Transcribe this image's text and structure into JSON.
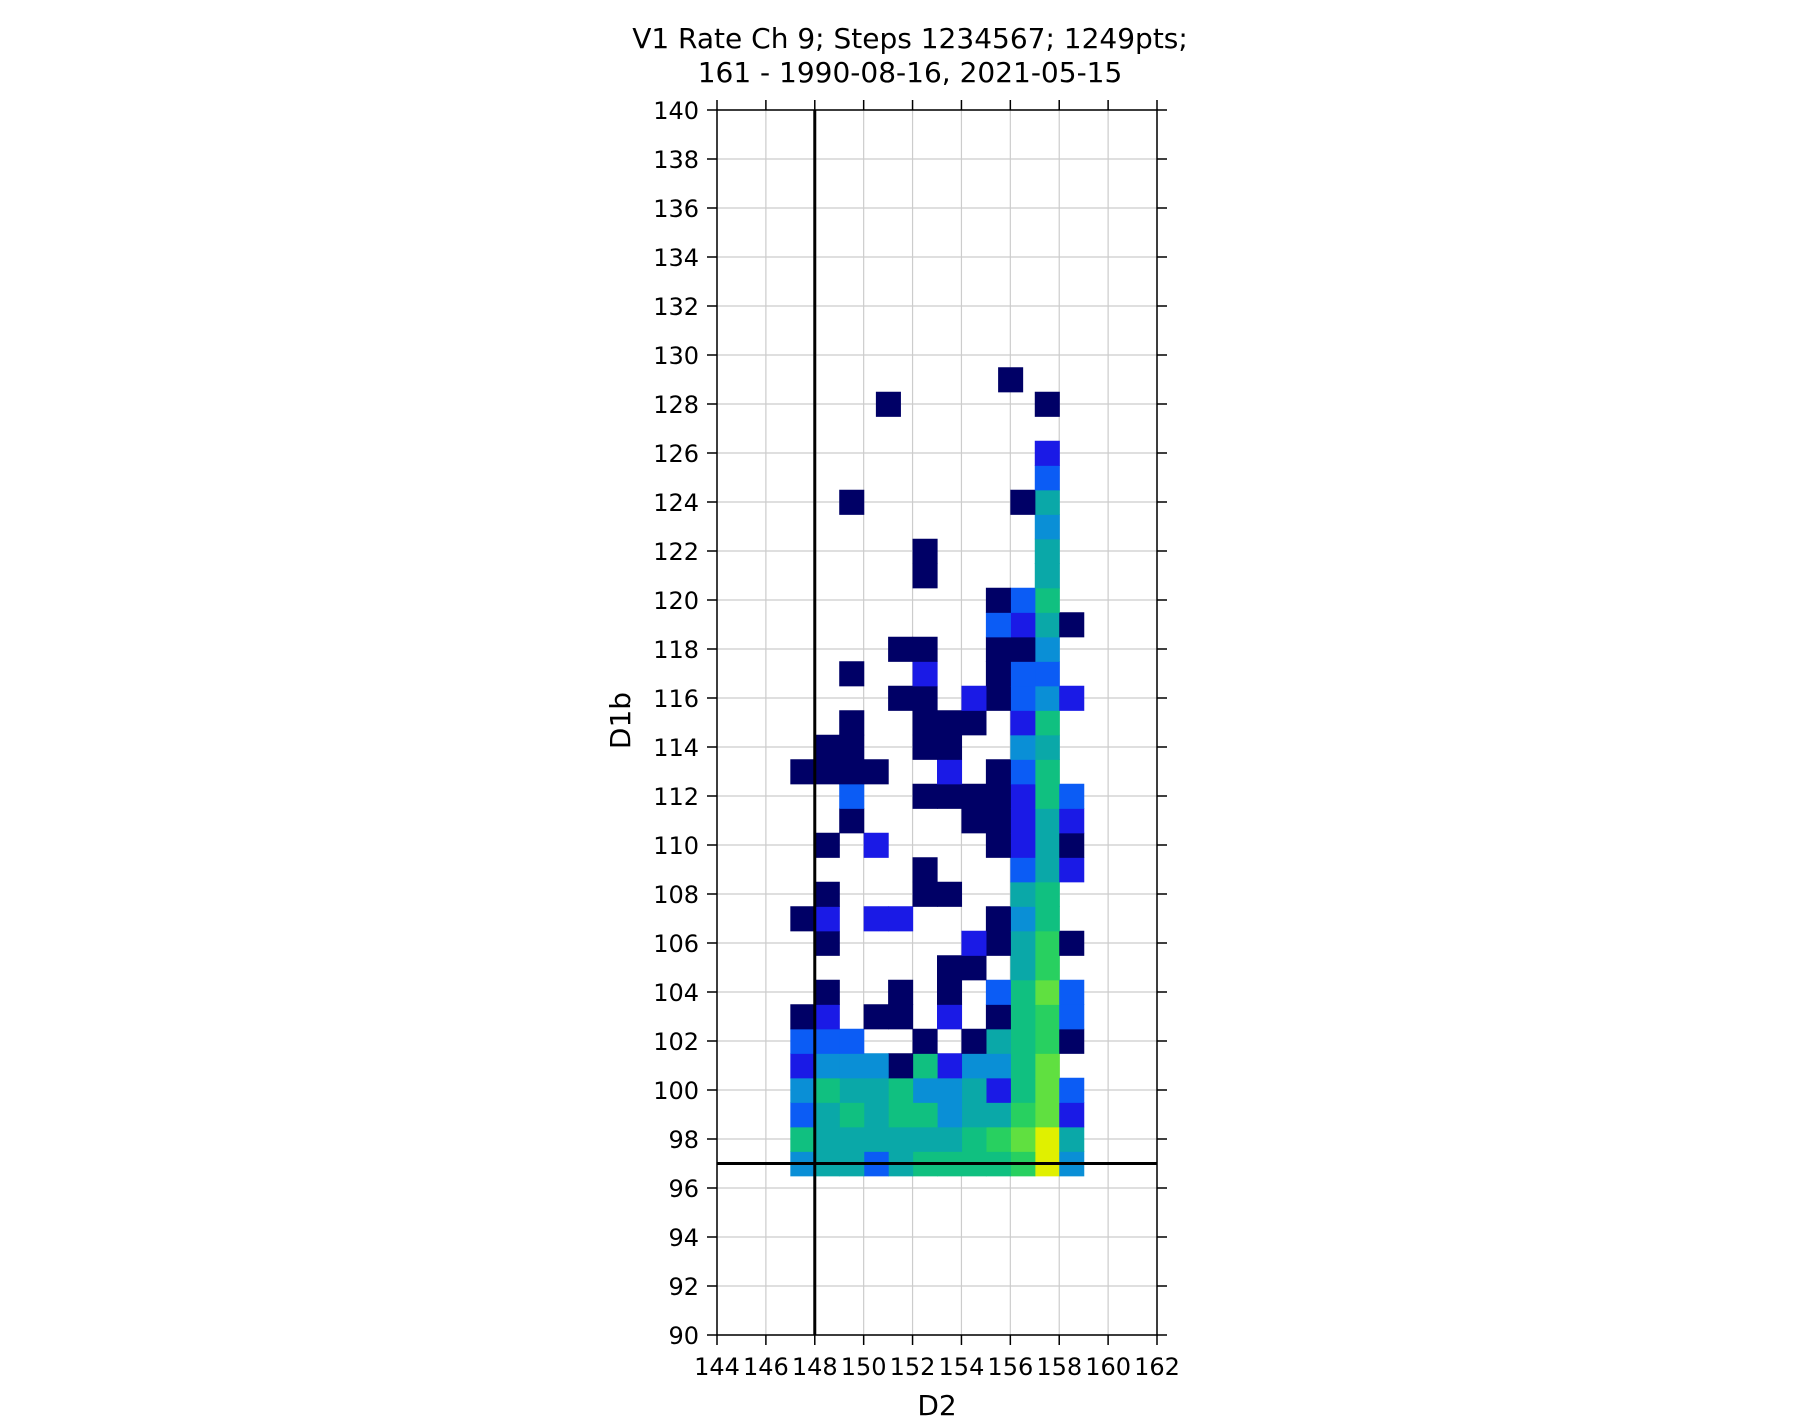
{
  "chart_data": {
    "type": "heatmap",
    "title_lines": [
      "V1 Rate Ch 9; Steps 1234567; 1249pts;",
      "161 - 1990-08-16, 2021-05-15"
    ],
    "xlabel": "D2",
    "ylabel": "D1b",
    "xlim": [
      144,
      162
    ],
    "ylim": [
      90,
      140
    ],
    "xticks": [
      "144",
      "146",
      "148",
      "150",
      "152",
      "154",
      "156",
      "158",
      "160",
      "162"
    ],
    "yticks": [
      "90",
      "92",
      "94",
      "96",
      "98",
      "100",
      "102",
      "104",
      "106",
      "108",
      "110",
      "112",
      "114",
      "116",
      "118",
      "120",
      "122",
      "124",
      "126",
      "128",
      "130",
      "132",
      "134",
      "136",
      "138",
      "140"
    ],
    "grid": true,
    "bin_size": 1,
    "reference_lines": {
      "vertical_x": 148,
      "horizontal_y": 97
    },
    "colormap": [
      "#000066",
      "#1a1ae6",
      "#0b5cf5",
      "#0a8fd6",
      "#0aa8a8",
      "#10c080",
      "#28d060",
      "#60e040",
      "#a0e020",
      "#e0f000"
    ],
    "cells": [
      [
        157.5,
        97.0,
        9
      ],
      [
        156.5,
        97.0,
        6
      ],
      [
        155.5,
        97.0,
        5
      ],
      [
        154.5,
        97.0,
        5
      ],
      [
        153.5,
        97.0,
        5
      ],
      [
        152.5,
        97.0,
        5
      ],
      [
        151.5,
        97.0,
        4
      ],
      [
        150.5,
        97.0,
        2
      ],
      [
        149.5,
        97.0,
        4
      ],
      [
        148.5,
        97.0,
        4
      ],
      [
        147.5,
        97.0,
        3
      ],
      [
        158.5,
        97.0,
        3
      ],
      [
        157.5,
        98.0,
        9
      ],
      [
        156.5,
        98.0,
        7
      ],
      [
        155.5,
        98.0,
        6
      ],
      [
        154.5,
        98.0,
        5
      ],
      [
        153.5,
        98.0,
        4
      ],
      [
        152.5,
        98.0,
        4
      ],
      [
        151.5,
        98.0,
        4
      ],
      [
        150.5,
        98.0,
        4
      ],
      [
        149.5,
        98.0,
        4
      ],
      [
        148.5,
        98.0,
        4
      ],
      [
        147.5,
        98.0,
        5
      ],
      [
        158.5,
        98.0,
        4
      ],
      [
        157.5,
        99.0,
        7
      ],
      [
        156.5,
        99.0,
        6
      ],
      [
        155.5,
        99.0,
        4
      ],
      [
        154.5,
        99.0,
        4
      ],
      [
        153.5,
        99.0,
        3
      ],
      [
        152.5,
        99.0,
        5
      ],
      [
        151.5,
        99.0,
        5
      ],
      [
        150.5,
        99.0,
        4
      ],
      [
        149.5,
        99.0,
        5
      ],
      [
        148.5,
        99.0,
        4
      ],
      [
        147.5,
        99.0,
        2
      ],
      [
        158.5,
        99.0,
        1
      ],
      [
        157.5,
        100.0,
        7
      ],
      [
        156.5,
        100.0,
        5
      ],
      [
        155.5,
        100.0,
        1
      ],
      [
        154.5,
        100.0,
        4
      ],
      [
        153.5,
        100.0,
        3
      ],
      [
        152.5,
        100.0,
        3
      ],
      [
        151.5,
        100.0,
        5
      ],
      [
        150.5,
        100.0,
        4
      ],
      [
        149.5,
        100.0,
        4
      ],
      [
        148.5,
        100.0,
        5
      ],
      [
        147.5,
        100.0,
        3
      ],
      [
        158.5,
        100.0,
        2
      ],
      [
        157.5,
        101.0,
        7
      ],
      [
        156.5,
        101.0,
        5
      ],
      [
        155.5,
        101.0,
        3
      ],
      [
        154.5,
        101.0,
        3
      ],
      [
        153.5,
        101.0,
        1
      ],
      [
        152.5,
        101.0,
        5
      ],
      [
        151.5,
        101.0,
        0
      ],
      [
        150.5,
        101.0,
        3
      ],
      [
        149.5,
        101.0,
        3
      ],
      [
        148.5,
        101.0,
        3
      ],
      [
        147.5,
        101.0,
        1
      ],
      [
        157.5,
        102.0,
        6
      ],
      [
        156.5,
        102.0,
        5
      ],
      [
        155.5,
        102.0,
        4
      ],
      [
        154.5,
        102.0,
        0
      ],
      [
        152.5,
        102.0,
        0
      ],
      [
        149.5,
        102.0,
        2
      ],
      [
        148.5,
        102.0,
        2
      ],
      [
        147.5,
        102.0,
        2
      ],
      [
        158.5,
        102.0,
        0
      ],
      [
        157.5,
        103.0,
        6
      ],
      [
        156.5,
        103.0,
        5
      ],
      [
        155.5,
        103.0,
        0
      ],
      [
        153.5,
        103.0,
        1
      ],
      [
        151.5,
        103.0,
        0
      ],
      [
        150.5,
        103.0,
        0
      ],
      [
        148.5,
        103.0,
        1
      ],
      [
        147.5,
        103.0,
        0
      ],
      [
        158.5,
        103.0,
        2
      ],
      [
        157.5,
        104.0,
        7
      ],
      [
        156.5,
        104.0,
        5
      ],
      [
        155.5,
        104.0,
        2
      ],
      [
        153.5,
        104.0,
        0
      ],
      [
        151.5,
        104.0,
        0
      ],
      [
        148.5,
        104.0,
        0
      ],
      [
        158.5,
        104.0,
        2
      ],
      [
        157.5,
        105.0,
        6
      ],
      [
        156.5,
        105.0,
        4
      ],
      [
        154.5,
        105.0,
        0
      ],
      [
        153.5,
        105.0,
        0
      ],
      [
        157.5,
        106.0,
        6
      ],
      [
        156.5,
        106.0,
        4
      ],
      [
        155.5,
        106.0,
        0
      ],
      [
        154.5,
        106.0,
        1
      ],
      [
        148.5,
        106.0,
        0
      ],
      [
        158.5,
        106.0,
        0
      ],
      [
        157.5,
        107.0,
        5
      ],
      [
        156.5,
        107.0,
        3
      ],
      [
        155.5,
        107.0,
        0
      ],
      [
        151.5,
        107.0,
        1
      ],
      [
        150.5,
        107.0,
        1
      ],
      [
        148.5,
        107.0,
        1
      ],
      [
        147.5,
        107.0,
        0
      ],
      [
        157.5,
        108.0,
        5
      ],
      [
        156.5,
        108.0,
        4
      ],
      [
        153.5,
        108.0,
        0
      ],
      [
        152.5,
        108.0,
        0
      ],
      [
        148.5,
        108.0,
        0
      ],
      [
        157.5,
        109.0,
        4
      ],
      [
        156.5,
        109.0,
        2
      ],
      [
        152.5,
        109.0,
        0
      ],
      [
        158.5,
        109.0,
        1
      ],
      [
        157.5,
        110.0,
        4
      ],
      [
        156.5,
        110.0,
        1
      ],
      [
        155.5,
        110.0,
        0
      ],
      [
        150.5,
        110.0,
        1
      ],
      [
        148.5,
        110.0,
        0
      ],
      [
        158.5,
        110.0,
        0
      ],
      [
        157.5,
        111.0,
        4
      ],
      [
        156.5,
        111.0,
        1
      ],
      [
        155.5,
        111.0,
        0
      ],
      [
        154.5,
        111.0,
        0
      ],
      [
        149.5,
        111.0,
        0
      ],
      [
        158.5,
        111.0,
        1
      ],
      [
        157.5,
        112.0,
        5
      ],
      [
        156.5,
        112.0,
        1
      ],
      [
        155.5,
        112.0,
        0
      ],
      [
        154.5,
        112.0,
        0
      ],
      [
        153.5,
        112.0,
        0
      ],
      [
        152.5,
        112.0,
        0
      ],
      [
        149.5,
        112.0,
        2
      ],
      [
        158.5,
        112.0,
        2
      ],
      [
        157.5,
        113.0,
        5
      ],
      [
        156.5,
        113.0,
        2
      ],
      [
        155.5,
        113.0,
        0
      ],
      [
        153.5,
        113.0,
        1
      ],
      [
        150.5,
        113.0,
        0
      ],
      [
        149.5,
        113.0,
        0
      ],
      [
        148.5,
        113.0,
        0
      ],
      [
        147.5,
        113.0,
        0
      ],
      [
        157.5,
        114.0,
        4
      ],
      [
        156.5,
        114.0,
        3
      ],
      [
        153.5,
        114.0,
        0
      ],
      [
        152.5,
        114.0,
        0
      ],
      [
        149.5,
        114.0,
        0
      ],
      [
        148.5,
        114.0,
        0
      ],
      [
        157.5,
        115.0,
        5
      ],
      [
        156.5,
        115.0,
        1
      ],
      [
        154.5,
        115.0,
        0
      ],
      [
        153.5,
        115.0,
        0
      ],
      [
        152.5,
        115.0,
        0
      ],
      [
        149.5,
        115.0,
        0
      ],
      [
        157.5,
        116.0,
        3
      ],
      [
        156.5,
        116.0,
        2
      ],
      [
        155.5,
        116.0,
        0
      ],
      [
        154.5,
        116.0,
        1
      ],
      [
        152.5,
        116.0,
        0
      ],
      [
        151.5,
        116.0,
        0
      ],
      [
        158.5,
        116.0,
        1
      ],
      [
        157.5,
        117.0,
        2
      ],
      [
        156.5,
        117.0,
        2
      ],
      [
        155.5,
        117.0,
        0
      ],
      [
        152.5,
        117.0,
        1
      ],
      [
        149.5,
        117.0,
        0
      ],
      [
        157.5,
        118.0,
        3
      ],
      [
        156.5,
        118.0,
        0
      ],
      [
        155.5,
        118.0,
        0
      ],
      [
        152.5,
        118.0,
        0
      ],
      [
        151.5,
        118.0,
        0
      ],
      [
        157.5,
        119.0,
        4
      ],
      [
        156.5,
        119.0,
        1
      ],
      [
        155.5,
        119.0,
        2
      ],
      [
        158.5,
        119.0,
        0
      ],
      [
        157.5,
        120.0,
        5
      ],
      [
        156.5,
        120.0,
        2
      ],
      [
        155.5,
        120.0,
        0
      ],
      [
        157.5,
        121.0,
        4
      ],
      [
        152.5,
        121.0,
        0
      ],
      [
        157.5,
        122.0,
        4
      ],
      [
        152.5,
        122.0,
        0
      ],
      [
        157.5,
        123.0,
        3
      ],
      [
        157.5,
        124.0,
        4
      ],
      [
        156.5,
        124.0,
        0
      ],
      [
        149.5,
        124.0,
        0
      ],
      [
        157.5,
        125.0,
        2
      ],
      [
        157.5,
        126.0,
        1
      ],
      [
        151.0,
        128.0,
        0
      ],
      [
        157.5,
        128.0,
        0
      ],
      [
        156.0,
        129.0,
        0
      ]
    ]
  }
}
